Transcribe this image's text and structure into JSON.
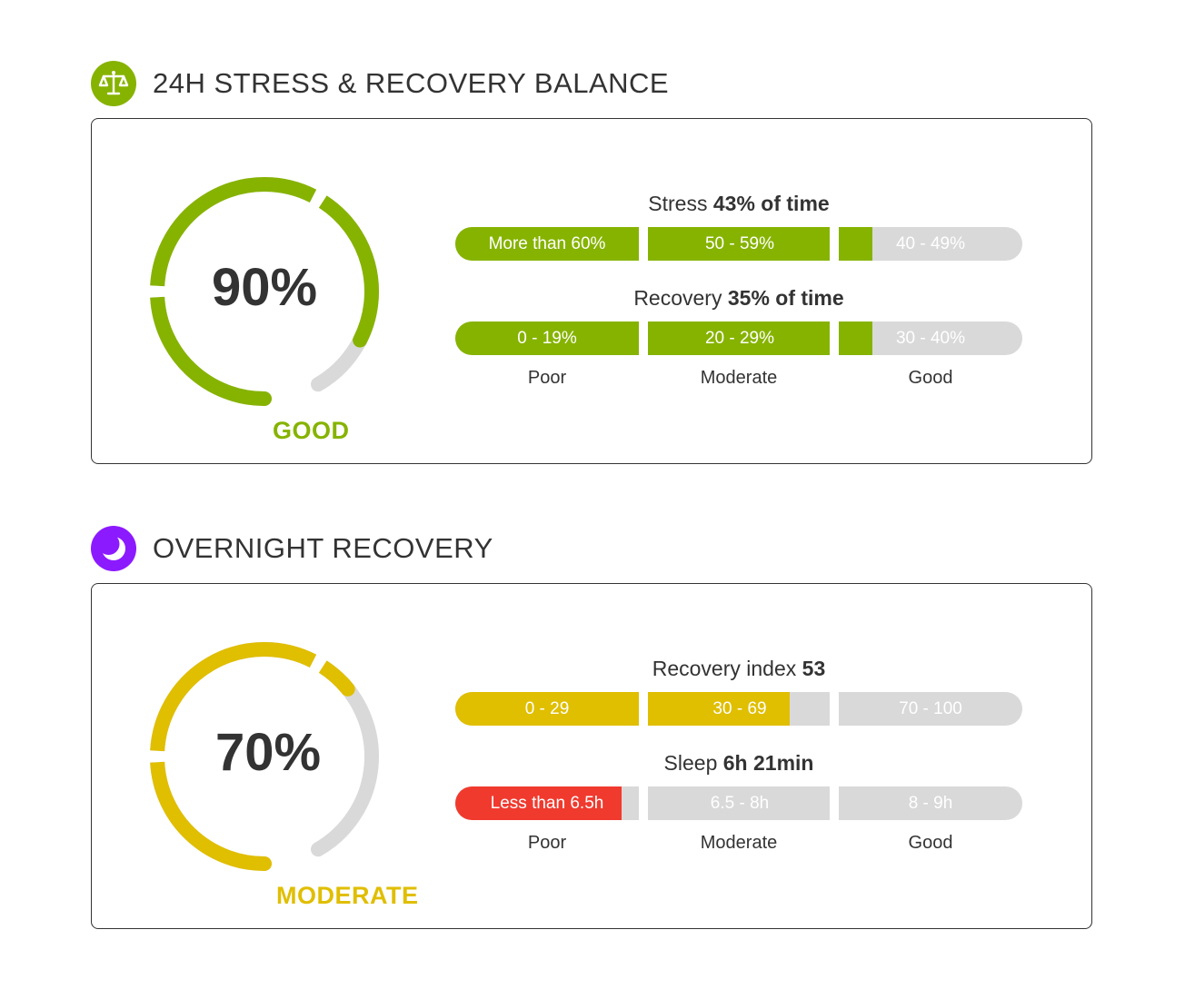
{
  "sections": [
    {
      "title": "24H STRESS & RECOVERY BALANCE",
      "icon": "balance-scale-icon",
      "accent": "#86b300",
      "gauge": {
        "value_text": "90%",
        "value": 0.9,
        "status": "GOOD",
        "color": "#86b300"
      },
      "metrics": [
        {
          "label": "Stress",
          "value_text": "43% of time",
          "fill_fraction": 0.735,
          "fill_color": "#86b300",
          "segments": [
            "More than 60%",
            "50 - 59%",
            "40 - 49%"
          ]
        },
        {
          "label": "Recovery",
          "value_text": "35% of time",
          "fill_fraction": 0.735,
          "fill_color": "#86b300",
          "segments": [
            "0 - 19%",
            "20 - 29%",
            "30 - 40%"
          ]
        }
      ],
      "scale": [
        "Poor",
        "Moderate",
        "Good"
      ]
    },
    {
      "title": "OVERNIGHT RECOVERY",
      "icon": "moon-icon",
      "accent": "#8c1aff",
      "gauge": {
        "value_text": "70%",
        "value": 0.7,
        "status": "MODERATE",
        "color": "#e0be00"
      },
      "metrics": [
        {
          "label": "Recovery index",
          "value_text": "53",
          "fill_fraction": 0.59,
          "fill_color": "#e0be00",
          "segments": [
            "0 - 29",
            "30 - 69",
            "70 - 100"
          ]
        },
        {
          "label": "Sleep",
          "value_text": "6h 21min",
          "fill_fraction": 0.293,
          "fill_color": "#f03a2e",
          "segments": [
            "Less than 6.5h",
            "6.5 - 8h",
            "8 - 9h"
          ]
        }
      ],
      "scale": [
        "Poor",
        "Moderate",
        "Good"
      ]
    }
  ],
  "colors": {
    "track": "#d9d9d9",
    "text": "#333333"
  }
}
